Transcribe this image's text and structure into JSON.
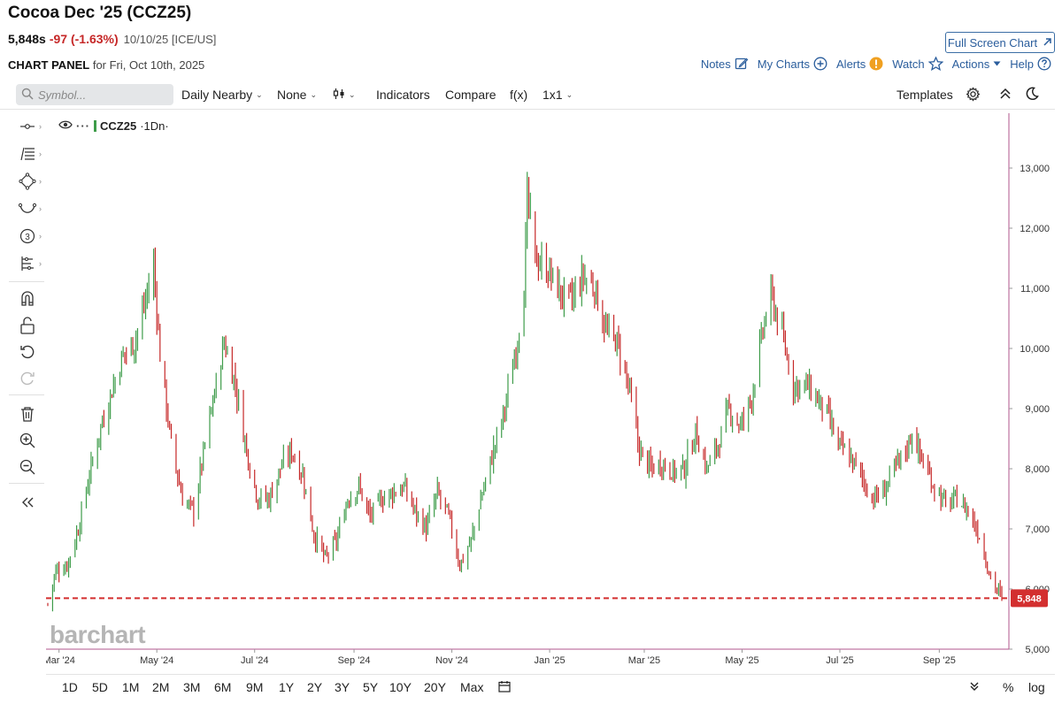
{
  "header": {
    "title": "Cocoa Dec '25 (CCZ25)",
    "price": "5,848s",
    "change": "-97 (-1.63%)",
    "meta": "10/10/25 [ICE/US]",
    "panel_label": "CHART PANEL",
    "panel_date": "for Fri, Oct 10th, 2025",
    "fullscreen": "Full Screen Chart"
  },
  "actions": {
    "notes": "Notes",
    "my_charts": "My Charts",
    "alerts": "Alerts",
    "watch": "Watch",
    "actions": "Actions",
    "help": "Help"
  },
  "toolbar": {
    "search_placeholder": "Symbol...",
    "period": "Daily Nearby",
    "overlay": "None",
    "indicators": "Indicators",
    "compare": "Compare",
    "fx": "f(x)",
    "layout": "1x1",
    "templates": "Templates"
  },
  "legend": {
    "symbol": "CCZ25",
    "interval": "·1Dn·"
  },
  "watermark": "barchart",
  "ranges": [
    "1D",
    "5D",
    "1M",
    "2M",
    "3M",
    "6M",
    "9M",
    "1Y",
    "2Y",
    "3Y",
    "5Y",
    "10Y",
    "20Y",
    "Max"
  ],
  "range_right": {
    "percent": "%",
    "log": "log"
  },
  "colors": {
    "up": "#3e9c4a",
    "down": "#c62828",
    "last_price": "#d32f2f",
    "axis_line": "#b0568e"
  },
  "chart_data": {
    "type": "ohlc",
    "symbol": "CCZ25",
    "interval": "Daily Nearby",
    "ylim": [
      5000,
      14000
    ],
    "y_ticks": [
      5000,
      6000,
      7000,
      8000,
      9000,
      10000,
      11000,
      12000,
      13000
    ],
    "y_tick_labels": [
      "5,000",
      "6,000",
      "7,000",
      "8,000",
      "9,000",
      "10,000",
      "11,000",
      "12,000",
      "13,000"
    ],
    "x_range": [
      "2024-02-23",
      "2025-10-10"
    ],
    "x_ticks": [
      "2024-03-01",
      "2024-05-01",
      "2024-07-01",
      "2024-09-01",
      "2024-11-01",
      "2025-01-01",
      "2025-03-01",
      "2025-05-01",
      "2025-07-01",
      "2025-09-01"
    ],
    "x_tick_labels": [
      "Mar '24",
      "May '24",
      "Jul '24",
      "Sep '24",
      "Nov '24",
      "Jan '25",
      "Mar '25",
      "May '25",
      "Jul '25",
      "Sep '25"
    ],
    "last_price": 5848,
    "last_price_label": "5,848",
    "closes_approx": [
      {
        "date": "2024-02-23",
        "close": 5750
      },
      {
        "date": "2024-02-28",
        "close": 6300
      },
      {
        "date": "2024-03-06",
        "close": 6400
      },
      {
        "date": "2024-03-13",
        "close": 7000
      },
      {
        "date": "2024-03-20",
        "close": 7900
      },
      {
        "date": "2024-03-27",
        "close": 8700
      },
      {
        "date": "2024-04-03",
        "close": 9300
      },
      {
        "date": "2024-04-10",
        "close": 9900
      },
      {
        "date": "2024-04-17",
        "close": 10100
      },
      {
        "date": "2024-04-24",
        "close": 10800
      },
      {
        "date": "2024-04-29",
        "close": 11400
      },
      {
        "date": "2024-05-03",
        "close": 9900
      },
      {
        "date": "2024-05-10",
        "close": 8400
      },
      {
        "date": "2024-05-17",
        "close": 7500
      },
      {
        "date": "2024-05-24",
        "close": 7300
      },
      {
        "date": "2024-05-31",
        "close": 8400
      },
      {
        "date": "2024-06-07",
        "close": 9400
      },
      {
        "date": "2024-06-12",
        "close": 10100
      },
      {
        "date": "2024-06-19",
        "close": 9400
      },
      {
        "date": "2024-06-26",
        "close": 8300
      },
      {
        "date": "2024-07-03",
        "close": 7500
      },
      {
        "date": "2024-07-10",
        "close": 7500
      },
      {
        "date": "2024-07-17",
        "close": 8000
      },
      {
        "date": "2024-07-24",
        "close": 8300
      },
      {
        "date": "2024-07-31",
        "close": 7900
      },
      {
        "date": "2024-08-07",
        "close": 6900
      },
      {
        "date": "2024-08-14",
        "close": 6500
      },
      {
        "date": "2024-08-21",
        "close": 6800
      },
      {
        "date": "2024-08-28",
        "close": 7500
      },
      {
        "date": "2024-09-04",
        "close": 7700
      },
      {
        "date": "2024-09-11",
        "close": 7200
      },
      {
        "date": "2024-09-18",
        "close": 7500
      },
      {
        "date": "2024-09-25",
        "close": 7600
      },
      {
        "date": "2024-10-02",
        "close": 7700
      },
      {
        "date": "2024-10-09",
        "close": 7300
      },
      {
        "date": "2024-10-16",
        "close": 7000
      },
      {
        "date": "2024-10-23",
        "close": 7600
      },
      {
        "date": "2024-10-30",
        "close": 7200
      },
      {
        "date": "2024-11-06",
        "close": 6400
      },
      {
        "date": "2024-11-13",
        "close": 6800
      },
      {
        "date": "2024-11-20",
        "close": 7600
      },
      {
        "date": "2024-11-27",
        "close": 8300
      },
      {
        "date": "2024-12-04",
        "close": 9000
      },
      {
        "date": "2024-12-11",
        "close": 10000
      },
      {
        "date": "2024-12-16",
        "close": 11000
      },
      {
        "date": "2024-12-18",
        "close": 12500
      },
      {
        "date": "2024-12-23",
        "close": 11500
      },
      {
        "date": "2024-12-31",
        "close": 11300
      },
      {
        "date": "2025-01-08",
        "close": 10900
      },
      {
        "date": "2025-01-15",
        "close": 10800
      },
      {
        "date": "2025-01-22",
        "close": 11200
      },
      {
        "date": "2025-01-29",
        "close": 11000
      },
      {
        "date": "2025-02-05",
        "close": 10300
      },
      {
        "date": "2025-02-12",
        "close": 10100
      },
      {
        "date": "2025-02-19",
        "close": 9400
      },
      {
        "date": "2025-02-26",
        "close": 8300
      },
      {
        "date": "2025-03-05",
        "close": 8000
      },
      {
        "date": "2025-03-12",
        "close": 8100
      },
      {
        "date": "2025-03-19",
        "close": 7950
      },
      {
        "date": "2025-03-26",
        "close": 8000
      },
      {
        "date": "2025-04-02",
        "close": 8600
      },
      {
        "date": "2025-04-09",
        "close": 8000
      },
      {
        "date": "2025-04-16",
        "close": 8400
      },
      {
        "date": "2025-04-23",
        "close": 9000
      },
      {
        "date": "2025-04-30",
        "close": 8700
      },
      {
        "date": "2025-05-07",
        "close": 9200
      },
      {
        "date": "2025-05-14",
        "close": 10300
      },
      {
        "date": "2025-05-19",
        "close": 10900
      },
      {
        "date": "2025-05-26",
        "close": 10200
      },
      {
        "date": "2025-06-02",
        "close": 9400
      },
      {
        "date": "2025-06-09",
        "close": 9400
      },
      {
        "date": "2025-06-16",
        "close": 9200
      },
      {
        "date": "2025-06-23",
        "close": 8900
      },
      {
        "date": "2025-06-30",
        "close": 8400
      },
      {
        "date": "2025-07-07",
        "close": 8200
      },
      {
        "date": "2025-07-14",
        "close": 7900
      },
      {
        "date": "2025-07-21",
        "close": 7500
      },
      {
        "date": "2025-07-28",
        "close": 7600
      },
      {
        "date": "2025-08-04",
        "close": 8000
      },
      {
        "date": "2025-08-11",
        "close": 8300
      },
      {
        "date": "2025-08-15",
        "close": 8600
      },
      {
        "date": "2025-08-22",
        "close": 8100
      },
      {
        "date": "2025-08-29",
        "close": 7700
      },
      {
        "date": "2025-09-05",
        "close": 7400
      },
      {
        "date": "2025-09-12",
        "close": 7500
      },
      {
        "date": "2025-09-19",
        "close": 7300
      },
      {
        "date": "2025-09-26",
        "close": 6900
      },
      {
        "date": "2025-10-03",
        "close": 6200
      },
      {
        "date": "2025-10-10",
        "close": 5848
      }
    ]
  }
}
